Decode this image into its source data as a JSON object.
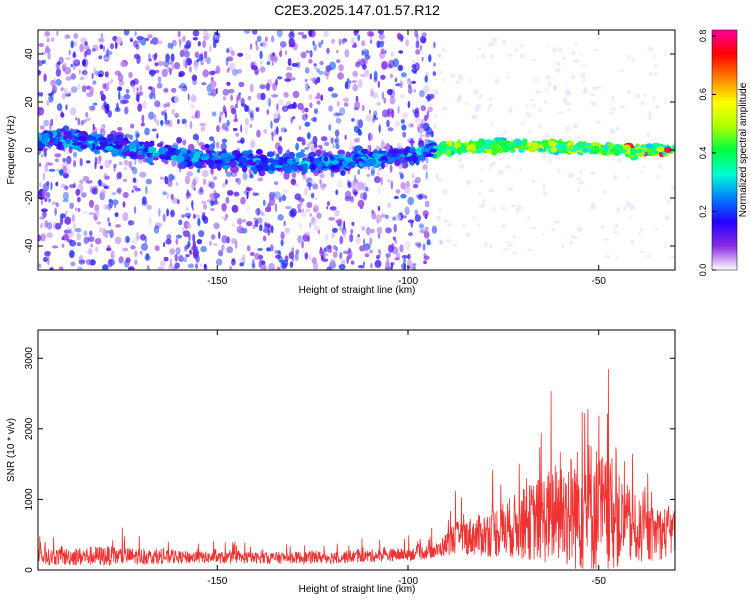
{
  "title": "C2E3.2025.147.01.57.R12",
  "chart_data": [
    {
      "type": "heatmap",
      "xlabel": "Height of straight line (km)",
      "ylabel": "Frequency (Hz)",
      "xlim": [
        -197,
        -30
      ],
      "ylim": [
        -50,
        50
      ],
      "xticks": [
        -150,
        -100,
        -50
      ],
      "yticks": [
        -40,
        -20,
        0,
        20,
        40
      ],
      "colorbar": {
        "label": "Normalized spectral amplitude",
        "range": [
          0,
          0.82
        ],
        "ticks": [
          "0.0",
          "0.2",
          "0.4",
          "0.6",
          "0.8"
        ],
        "colors": [
          "#ffffff",
          "#8a2be2",
          "#2400ff",
          "#0080ff",
          "#00ffd0",
          "#00ff40",
          "#b0ff00",
          "#ffff00",
          "#ff8000",
          "#ff0000",
          "#ff00a0"
        ]
      },
      "ridge": [
        {
          "x": -197,
          "y": 5
        },
        {
          "x": -185,
          "y": 4
        },
        {
          "x": -170,
          "y": 0
        },
        {
          "x": -155,
          "y": -3
        },
        {
          "x": -140,
          "y": -5
        },
        {
          "x": -130,
          "y": -6
        },
        {
          "x": -120,
          "y": -5
        },
        {
          "x": -110,
          "y": -4
        },
        {
          "x": -100,
          "y": -2
        },
        {
          "x": -93,
          "y": 0
        },
        {
          "x": -85,
          "y": 1
        },
        {
          "x": -70,
          "y": 2
        },
        {
          "x": -55,
          "y": 1
        },
        {
          "x": -45,
          "y": 0
        },
        {
          "x": -35,
          "y": 0
        },
        {
          "x": -30,
          "y": 0
        }
      ],
      "scatter_cutoff_km": -93
    },
    {
      "type": "line",
      "xlabel": "Height of straight line (km)",
      "ylabel": "SNR (10 * v/v)",
      "xlim": [
        -197,
        -30
      ],
      "ylim": [
        0,
        3400
      ],
      "xticks": [
        -150,
        -100,
        -50
      ],
      "yticks": [
        0,
        1000,
        2000,
        3000
      ],
      "color": "#ee3333",
      "envelope": [
        {
          "x": -197,
          "base": 180,
          "spread": 250
        },
        {
          "x": -180,
          "base": 200,
          "spread": 320
        },
        {
          "x": -160,
          "base": 180,
          "spread": 200
        },
        {
          "x": -140,
          "base": 170,
          "spread": 180
        },
        {
          "x": -120,
          "base": 180,
          "spread": 200
        },
        {
          "x": -100,
          "base": 220,
          "spread": 200
        },
        {
          "x": -92,
          "base": 280,
          "spread": 250
        },
        {
          "x": -88,
          "base": 450,
          "spread": 500
        },
        {
          "x": -80,
          "base": 500,
          "spread": 700
        },
        {
          "x": -70,
          "base": 650,
          "spread": 1100
        },
        {
          "x": -60,
          "base": 800,
          "spread": 1700
        },
        {
          "x": -52,
          "base": 900,
          "spread": 2200
        },
        {
          "x": -45,
          "base": 700,
          "spread": 1500
        },
        {
          "x": -38,
          "base": 500,
          "spread": 900
        },
        {
          "x": -30,
          "base": 550,
          "spread": 800
        }
      ]
    }
  ]
}
